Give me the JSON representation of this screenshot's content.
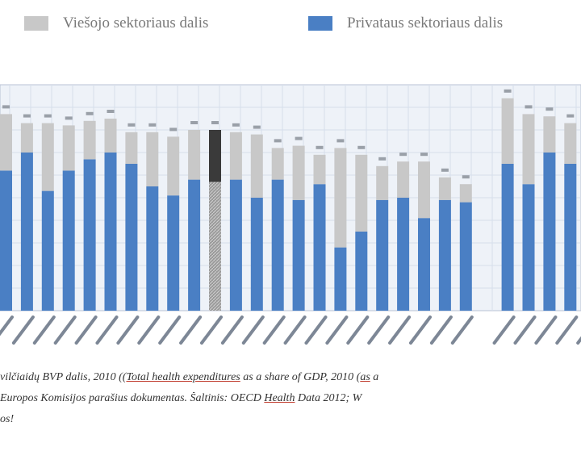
{
  "legend": {
    "public_label": "Viešojo sektoriaus dalis",
    "private_label": "Privataus sektoriaus dalis"
  },
  "colors": {
    "public": "#c8c8c8",
    "private": "#4a7fc4",
    "highlight_top": "#3a3a3a",
    "highlight_bottom": "#9a9a9a",
    "grid": "#d6deea",
    "plot_bg": "#eef2f8"
  },
  "chart_data": {
    "type": "bar",
    "stacked": true,
    "ylim": [
      0,
      100
    ],
    "grid": true,
    "legend_position": "top",
    "categories": [
      "",
      "",
      "",
      "",
      "",
      "",
      "",
      "",
      "",
      "",
      "",
      "",
      "",
      "",
      "",
      "",
      "",
      "",
      "",
      "",
      "",
      "",
      "",
      "",
      "",
      "",
      "",
      "",
      ""
    ],
    "series": [
      {
        "name": "Privataus sektoriaus dalis",
        "values": [
          62,
          70,
          53,
          62,
          67,
          70,
          65,
          55,
          51,
          58,
          57,
          58,
          50,
          58,
          49,
          56,
          28,
          35,
          49,
          50,
          41,
          49,
          48,
          0,
          65,
          56,
          70,
          65,
          55
        ]
      },
      {
        "name": "Viešojo sektoriaus dalis",
        "values": [
          25,
          13,
          30,
          20,
          17,
          15,
          14,
          24,
          26,
          22,
          23,
          21,
          28,
          14,
          24,
          13,
          44,
          34,
          15,
          16,
          25,
          10,
          8,
          0,
          29,
          31,
          16,
          18,
          25
        ]
      }
    ],
    "highlight_index": 10
  },
  "caption": {
    "line1_a": "vilčiaidų BVP dalis, 2010 ((",
    "line1_b": "Total health expenditures",
    "line1_c": " as a share of GDP, 2010 (",
    "line1_d": "as",
    "line1_e": " a",
    "line2_a": "Europos Komisijos parašius dokumentas. Šaltinis: OECD ",
    "line2_b": "Health",
    "line2_c": " Data 2012; W",
    "line3": "os!"
  }
}
